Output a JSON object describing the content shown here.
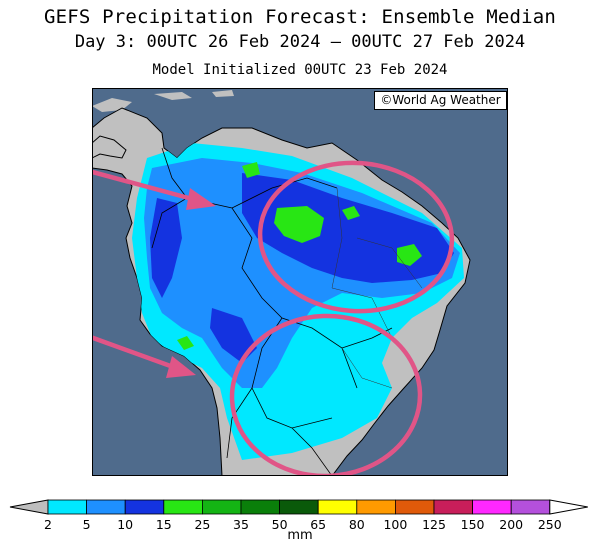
{
  "header": {
    "title": "GEFS Precipitation Forecast: Ensemble Median",
    "period": "Day 3: 00UTC 26 Feb 2024 — 00UTC 27 Feb 2024",
    "initialized": "Model Initialized 00UTC 23 Feb 2024"
  },
  "map": {
    "credit": "©World Ag Weather",
    "ocean_color": "#4f6b8c",
    "land_color": "#c0c0c0",
    "annotation_color": "#e05587",
    "annotations": [
      {
        "type": "arrow",
        "name": "arrow-northwest"
      },
      {
        "type": "arrow",
        "name": "arrow-southwest"
      },
      {
        "type": "ellipse",
        "name": "circle-north-brazil"
      },
      {
        "type": "ellipse",
        "name": "circle-south-brazil"
      }
    ]
  },
  "legend": {
    "unit": "mm",
    "labels": [
      "2",
      "5",
      "10",
      "15",
      "25",
      "35",
      "50",
      "65",
      "80",
      "100",
      "125",
      "150",
      "200",
      "250"
    ],
    "colors": [
      "#00e8ff",
      "#1e90ff",
      "#1433e0",
      "#28e614",
      "#14b414",
      "#0a7f0a",
      "#0a5a0a",
      "#ffff00",
      "#ff9a00",
      "#e05a0a",
      "#c81e5a",
      "#ff28ff",
      "#b450dc"
    ],
    "under_color": "#bebebe",
    "over_color": "#ffffff"
  }
}
